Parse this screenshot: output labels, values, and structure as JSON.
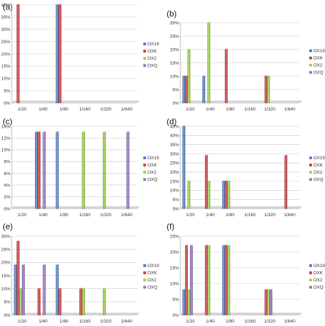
{
  "colors": {
    "OX19": "#4a7fd0",
    "OXK": "#d8363c",
    "OX2": "#9fd83a",
    "OXQ": "#9a6fcc"
  },
  "chart_data": [
    {
      "panel": "(a)",
      "type": "bar",
      "categories": [
        "1/20",
        "1/40",
        "1/80",
        "1/160",
        "1/320",
        "1/640"
      ],
      "ylim": [
        0,
        40
      ],
      "yticks": [
        "0%",
        "5%",
        "10%",
        "15%",
        "20%",
        "25%",
        "30%",
        "35%",
        "40%"
      ],
      "grid": true,
      "legend_position": "right",
      "series": [
        {
          "name": "OX19",
          "values": [
            0,
            0,
            40,
            0,
            0,
            0
          ]
        },
        {
          "name": "OXK",
          "values": [
            40,
            0,
            40,
            0,
            0,
            0
          ]
        },
        {
          "name": "OX2",
          "values": [
            0,
            0,
            0,
            0,
            0,
            0
          ]
        },
        {
          "name": "OXQ",
          "values": [
            0,
            0,
            0,
            0,
            0,
            0
          ]
        }
      ]
    },
    {
      "panel": "(b)",
      "type": "bar",
      "categories": [
        "1/20",
        "1/40",
        "1/80",
        "1/160",
        "1/320",
        "1/640"
      ],
      "ylim": [
        0,
        30
      ],
      "yticks": [
        "0%",
        "5%",
        "10%",
        "15%",
        "20%",
        "25%",
        "30%"
      ],
      "grid": true,
      "legend_position": "right",
      "series": [
        {
          "name": "OX19",
          "values": [
            10,
            10,
            0,
            0,
            0,
            0
          ]
        },
        {
          "name": "OXK",
          "values": [
            10,
            0,
            20,
            0,
            10,
            0
          ]
        },
        {
          "name": "OX2",
          "values": [
            20,
            30,
            0,
            0,
            10,
            0
          ]
        },
        {
          "name": "OXQ",
          "values": [
            0,
            0,
            0,
            0,
            0,
            0
          ]
        }
      ]
    },
    {
      "panel": "(c)",
      "type": "bar",
      "categories": [
        "1/20",
        "1/40",
        "1/80",
        "1/160",
        "1/320",
        "1/640"
      ],
      "ylim": [
        0,
        14
      ],
      "yticks": [
        "0%",
        "2%",
        "4%",
        "6%",
        "8%",
        "10%",
        "12%",
        "14%"
      ],
      "grid": true,
      "legend_position": "right",
      "series": [
        {
          "name": "OX19",
          "values": [
            0,
            13,
            13,
            0,
            0,
            0
          ]
        },
        {
          "name": "OXK",
          "values": [
            0,
            13,
            0,
            0,
            0,
            0
          ]
        },
        {
          "name": "OX2",
          "values": [
            0,
            0,
            0,
            13,
            13,
            0
          ]
        },
        {
          "name": "OXQ",
          "values": [
            0,
            13,
            0,
            0,
            0,
            13
          ]
        }
      ]
    },
    {
      "panel": "(d)",
      "type": "bar",
      "categories": [
        "1/20",
        "1/40",
        "1/80",
        "1/160",
        "1/320",
        "1/640"
      ],
      "ylim": [
        0,
        45
      ],
      "yticks": [
        "0%",
        "5%",
        "10%",
        "15%",
        "20%",
        "25%",
        "30%",
        "35%",
        "40%",
        "45%"
      ],
      "grid": true,
      "legend_position": "right",
      "series": [
        {
          "name": "OX19",
          "values": [
            45,
            0,
            15,
            0,
            0,
            0
          ]
        },
        {
          "name": "OXK",
          "values": [
            0,
            29,
            15,
            0,
            0,
            29
          ]
        },
        {
          "name": "OX2",
          "values": [
            15,
            15,
            15,
            0,
            0,
            0
          ]
        },
        {
          "name": "OXQ",
          "values": [
            0,
            0,
            0,
            0,
            0,
            0
          ]
        }
      ]
    },
    {
      "panel": "(e)",
      "type": "bar",
      "categories": [
        "1/20",
        "1/40",
        "1/80",
        "1/160",
        "1/320",
        "1/640"
      ],
      "ylim": [
        0,
        30
      ],
      "yticks": [
        "0%",
        "5%",
        "10%",
        "15%",
        "20%",
        "25%",
        "30%"
      ],
      "grid": true,
      "legend_position": "right",
      "series": [
        {
          "name": "OX19",
          "values": [
            19,
            0,
            19,
            0,
            0,
            0
          ]
        },
        {
          "name": "OXK",
          "values": [
            28,
            10,
            10,
            10,
            0,
            0
          ]
        },
        {
          "name": "OX2",
          "values": [
            10,
            0,
            0,
            10,
            10,
            0
          ]
        },
        {
          "name": "OXQ",
          "values": [
            19,
            19,
            0,
            0,
            0,
            0
          ]
        }
      ]
    },
    {
      "panel": "(f)",
      "type": "bar",
      "categories": [
        "1/20",
        "1/40",
        "1/80",
        "1/160",
        "1/320",
        "1/640"
      ],
      "ylim": [
        0,
        25
      ],
      "yticks": [
        "0%",
        "5%",
        "10%",
        "15%",
        "20%",
        "25%"
      ],
      "grid": true,
      "legend_position": "right",
      "series": [
        {
          "name": "OX19",
          "values": [
            8,
            0,
            22,
            0,
            0,
            0
          ]
        },
        {
          "name": "OXK",
          "values": [
            22,
            22,
            22,
            0,
            8,
            0
          ]
        },
        {
          "name": "OX2",
          "values": [
            8,
            22,
            22,
            0,
            8,
            0
          ]
        },
        {
          "name": "OXQ",
          "values": [
            22,
            0,
            0,
            0,
            8,
            0
          ]
        }
      ]
    }
  ]
}
